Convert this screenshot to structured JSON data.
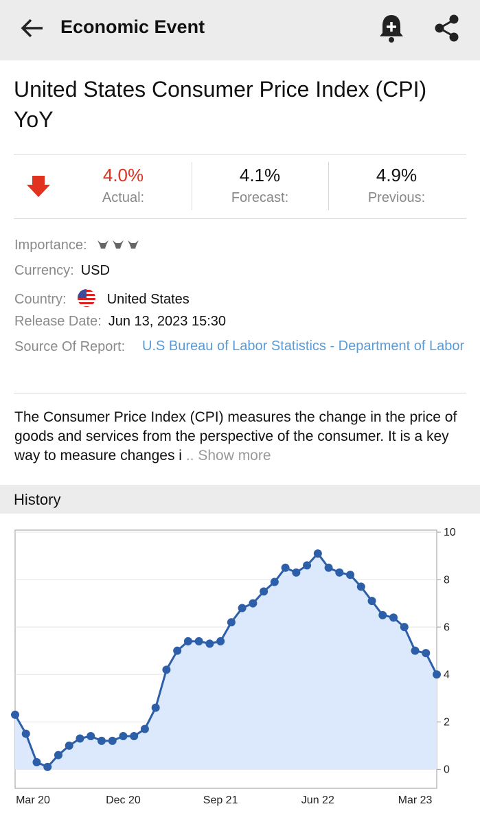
{
  "header": {
    "title": "Economic Event"
  },
  "event": {
    "title": "United States Consumer Price Index (CPI) YoY"
  },
  "stats": [
    {
      "value": "4.0%",
      "label": "Actual:"
    },
    {
      "value": "4.1%",
      "label": "Forecast:"
    },
    {
      "value": "4.9%",
      "label": "Previous:"
    }
  ],
  "info": [
    {
      "label": "Importance:"
    },
    {
      "label": "Currency:",
      "value": "USD"
    },
    {
      "label": "Country:",
      "value": "United States"
    },
    {
      "label": "Release Date:",
      "value": "Jun 13, 2023 15:30"
    },
    {
      "label": "Source Of Report:",
      "value": "U.S Bureau of Labor Statistics - Department of Labor"
    }
  ],
  "description": {
    "text": "The Consumer Price Index (CPI) measures the change in the price of goods and services from the perspective of the consumer. It is a key way to measure changes i",
    "truncation": "..",
    "more": "Show more"
  },
  "section": {
    "title": "History"
  },
  "chart_data": {
    "type": "line",
    "categories": [
      null,
      "Mar 20",
      null,
      null,
      null,
      null,
      null,
      null,
      null,
      null,
      "Dec 20",
      null,
      null,
      null,
      null,
      null,
      null,
      null,
      null,
      "Sep 21",
      null,
      null,
      null,
      null,
      null,
      null,
      null,
      null,
      "Jun 22",
      null,
      null,
      null,
      null,
      null,
      null,
      null,
      null,
      "Mar 23",
      null,
      null
    ],
    "values": [
      2.3,
      1.5,
      0.3,
      0.1,
      0.6,
      1.0,
      1.3,
      1.4,
      1.2,
      1.2,
      1.4,
      1.4,
      1.7,
      2.6,
      4.2,
      5.0,
      5.4,
      5.4,
      5.3,
      5.4,
      6.2,
      6.8,
      7.0,
      7.5,
      7.9,
      8.5,
      8.3,
      8.6,
      9.1,
      8.5,
      8.3,
      8.2,
      7.7,
      7.1,
      6.5,
      6.4,
      6.0,
      5.0,
      4.9,
      4.0
    ],
    "color": "#2c5fa8",
    "area_color": "#dce8fb",
    "ylim": [
      -0.8,
      10
    ],
    "yticks": [
      0,
      2,
      4,
      6,
      8,
      10
    ],
    "grid": true
  }
}
